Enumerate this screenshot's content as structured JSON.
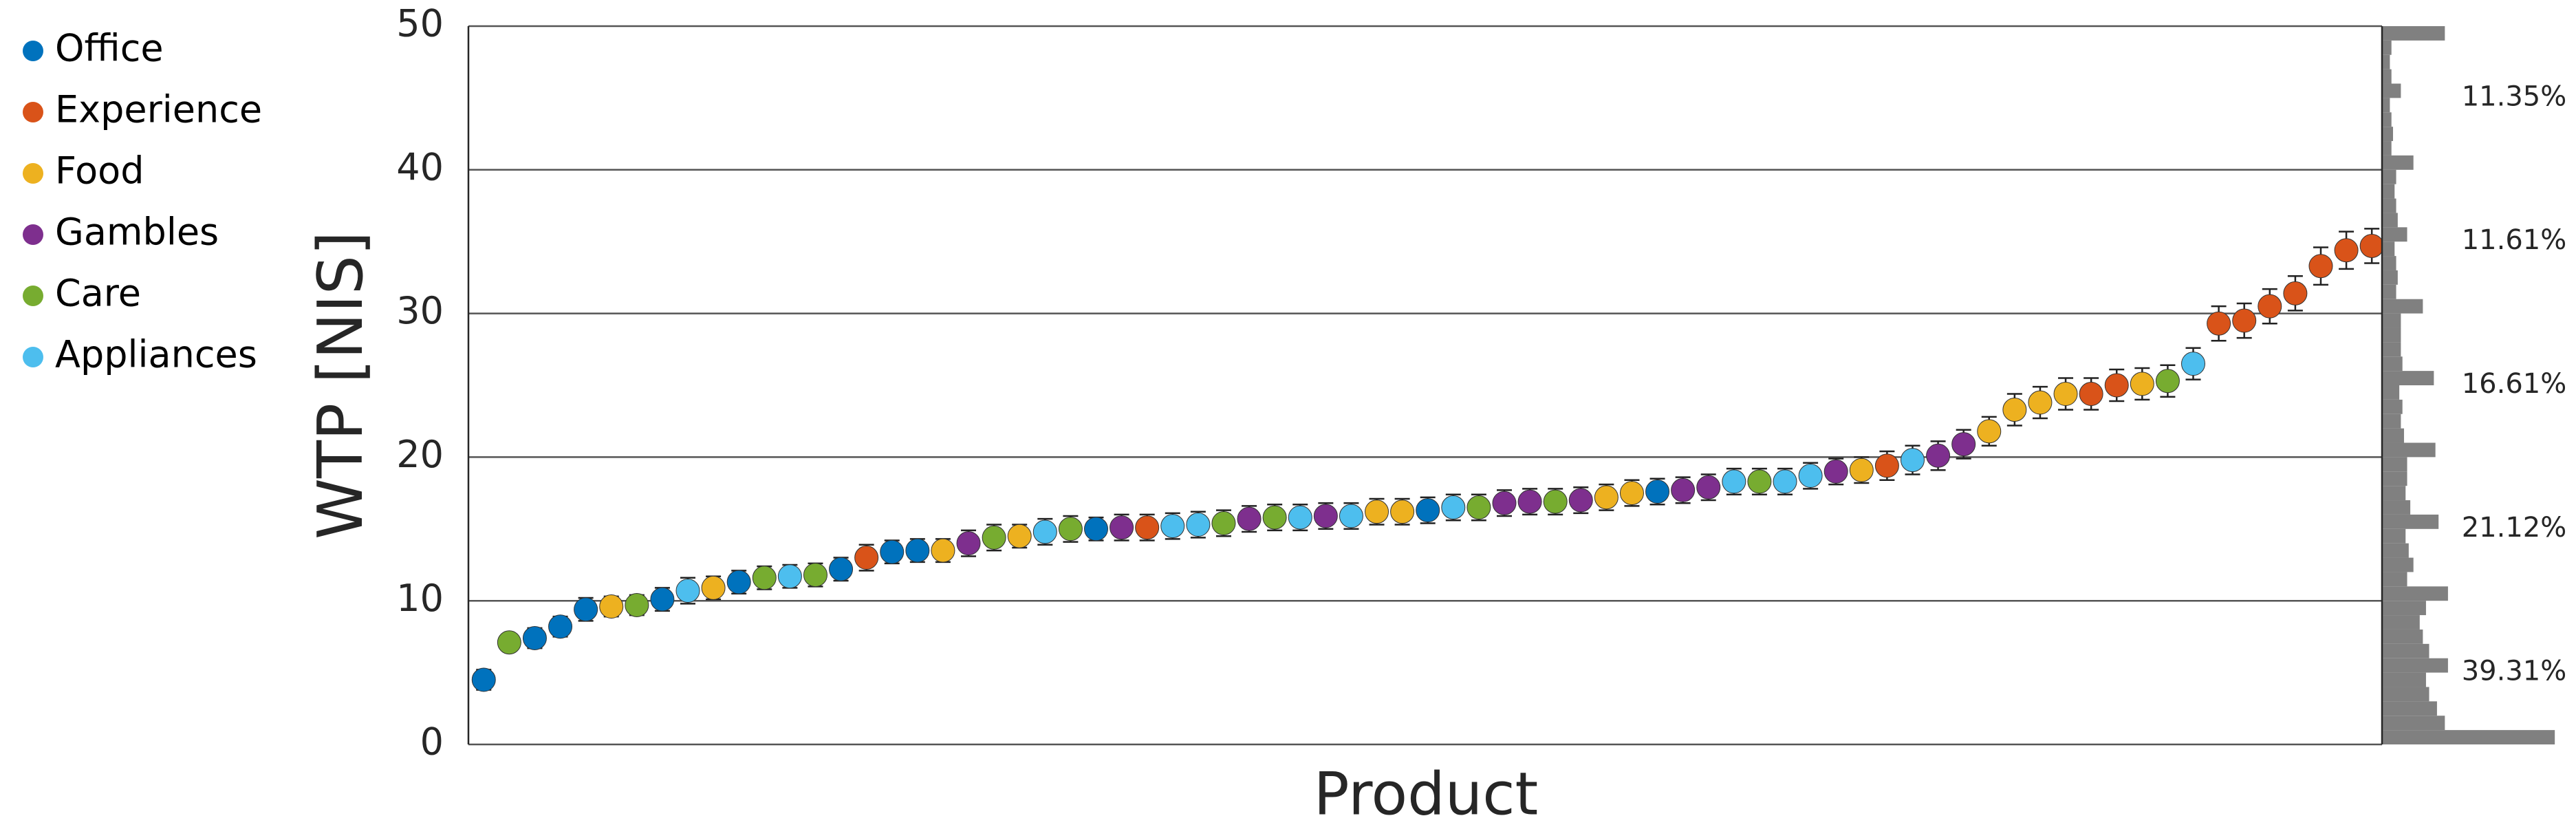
{
  "chart_data": [
    {
      "type": "errorbar",
      "ylabel": "WTP [NIS]",
      "xlabel": "Product",
      "legend": [
        {
          "name": "Office",
          "color": "#0072bd"
        },
        {
          "name": "Experience",
          "color": "#d95319"
        },
        {
          "name": "Food",
          "color": "#edb120"
        },
        {
          "name": "Gambles",
          "color": "#7e2f8e"
        },
        {
          "name": "Care",
          "color": "#77ac30"
        },
        {
          "name": "Appliances",
          "color": "#4dbeee"
        }
      ],
      "categories": [
        null,
        null,
        null,
        null,
        null,
        null,
        null,
        null,
        null,
        null,
        null,
        null,
        null,
        null,
        null,
        null,
        null,
        null,
        null,
        null,
        null,
        null,
        null,
        null,
        null,
        null,
        null,
        null,
        null,
        null,
        null,
        null,
        null,
        null,
        null,
        null,
        null,
        null,
        null,
        null,
        null,
        null,
        null,
        null,
        null,
        null,
        null,
        null,
        null,
        null,
        null,
        null,
        null,
        null,
        null,
        null,
        null,
        null,
        null,
        null,
        null,
        null,
        null,
        null,
        null,
        null,
        null,
        null,
        null,
        null,
        null,
        null,
        null,
        null,
        null
      ],
      "values": [
        4.5,
        7.1,
        7.4,
        8.2,
        9.4,
        9.6,
        9.7,
        10.1,
        10.7,
        10.9,
        11.3,
        11.6,
        11.7,
        11.8,
        12.2,
        13.0,
        13.4,
        13.5,
        13.5,
        14.0,
        14.4,
        14.5,
        14.8,
        15.0,
        15.0,
        15.1,
        15.1,
        15.2,
        15.3,
        15.4,
        15.7,
        15.8,
        15.8,
        15.9,
        15.9,
        16.2,
        16.2,
        16.3,
        16.5,
        16.5,
        16.8,
        16.9,
        16.9,
        17.0,
        17.2,
        17.5,
        17.6,
        17.7,
        17.9,
        18.3,
        18.3,
        18.3,
        18.7,
        19.0,
        19.1,
        19.4,
        19.8,
        20.1,
        20.9,
        21.8,
        23.3,
        23.8,
        24.4,
        24.4,
        25.0,
        25.1,
        25.3,
        26.5,
        29.3,
        29.5,
        30.5,
        31.4,
        33.3,
        34.4,
        34.7
      ],
      "errors": [
        0.7,
        0.6,
        0.7,
        0.7,
        0.8,
        0.7,
        0.7,
        0.8,
        0.9,
        0.8,
        0.8,
        0.8,
        0.8,
        0.8,
        0.8,
        0.9,
        0.8,
        0.8,
        0.8,
        0.9,
        0.9,
        0.8,
        0.9,
        0.9,
        0.8,
        0.9,
        0.9,
        0.9,
        0.9,
        0.9,
        0.9,
        0.9,
        0.9,
        0.9,
        0.9,
        0.9,
        0.9,
        0.9,
        0.9,
        0.9,
        0.9,
        0.9,
        0.9,
        0.9,
        0.9,
        0.9,
        0.9,
        0.9,
        0.9,
        0.9,
        0.9,
        0.9,
        0.9,
        0.9,
        0.9,
        1.0,
        1.0,
        1.0,
        1.0,
        1.0,
        1.1,
        1.1,
        1.1,
        1.1,
        1.1,
        1.1,
        1.1,
        1.1,
        1.2,
        1.2,
        1.2,
        1.2,
        1.3,
        1.3,
        1.2
      ],
      "point_colors": [
        "#0072bd",
        "#77ac30",
        "#0072bd",
        "#0072bd",
        "#0072bd",
        "#edb120",
        "#77ac30",
        "#0072bd",
        "#4dbeee",
        "#edb120",
        "#0072bd",
        "#77ac30",
        "#4dbeee",
        "#77ac30",
        "#0072bd",
        "#d95319",
        "#0072bd",
        "#0072bd",
        "#edb120",
        "#7e2f8e",
        "#77ac30",
        "#edb120",
        "#4dbeee",
        "#77ac30",
        "#0072bd",
        "#7e2f8e",
        "#d95319",
        "#4dbeee",
        "#4dbeee",
        "#77ac30",
        "#7e2f8e",
        "#77ac30",
        "#4dbeee",
        "#7e2f8e",
        "#4dbeee",
        "#edb120",
        "#edb120",
        "#0072bd",
        "#4dbeee",
        "#77ac30",
        "#7e2f8e",
        "#7e2f8e",
        "#77ac30",
        "#7e2f8e",
        "#edb120",
        "#edb120",
        "#0072bd",
        "#7e2f8e",
        "#7e2f8e",
        "#4dbeee",
        "#77ac30",
        "#4dbeee",
        "#4dbeee",
        "#7e2f8e",
        "#edb120",
        "#d95319",
        "#4dbeee",
        "#7e2f8e",
        "#7e2f8e",
        "#edb120",
        "#edb120",
        "#edb120",
        "#edb120",
        "#d95319",
        "#d95319",
        "#edb120",
        "#77ac30",
        "#4dbeee",
        "#d95319",
        "#d95319",
        "#d95319",
        "#d95319",
        "#d95319",
        "#d95319",
        "#d95319"
      ],
      "ylim": [
        0,
        50
      ],
      "yticks": [
        0,
        10,
        20,
        30,
        40,
        50
      ],
      "grid": true
    },
    {
      "type": "histogram",
      "orientation": "horizontal",
      "color": "#808080",
      "bins": [
        0,
        1,
        2,
        3,
        4,
        5,
        6,
        7,
        8,
        9,
        10,
        11,
        12,
        13,
        14,
        15,
        16,
        17,
        18,
        19,
        20,
        21,
        22,
        23,
        24,
        25,
        26,
        27,
        28,
        29,
        30,
        31,
        32,
        33,
        34,
        35,
        36,
        37,
        38,
        39,
        40,
        41,
        42,
        43,
        44,
        45,
        46,
        47,
        48,
        49,
        50
      ],
      "values": [
        11.0,
        4.0,
        3.5,
        3.0,
        2.8,
        4.2,
        3.0,
        2.6,
        2.4,
        2.8,
        4.2,
        1.6,
        2.0,
        1.7,
        1.5,
        3.6,
        1.8,
        1.5,
        1.6,
        1.6,
        3.4,
        1.4,
        1.2,
        1.3,
        1.1,
        3.3,
        1.3,
        1.2,
        1.2,
        1.2,
        2.6,
        0.9,
        1.0,
        0.9,
        0.8,
        1.6,
        1.0,
        0.9,
        0.8,
        0.9,
        2.0,
        0.6,
        0.7,
        0.6,
        0.5,
        1.2,
        0.6,
        0.5,
        0.6,
        4.0
      ],
      "xlim": [
        0,
        12
      ],
      "ylim": [
        0,
        50
      ],
      "bands": [
        {
          "range": [
            0,
            10
          ],
          "label": "39.31%"
        },
        {
          "range": [
            10,
            20
          ],
          "label": "21.12%"
        },
        {
          "range": [
            20,
            30
          ],
          "label": "16.61%"
        },
        {
          "range": [
            30,
            40
          ],
          "label": "11.61%"
        },
        {
          "range": [
            40,
            50
          ],
          "label": "11.35%"
        }
      ]
    }
  ]
}
